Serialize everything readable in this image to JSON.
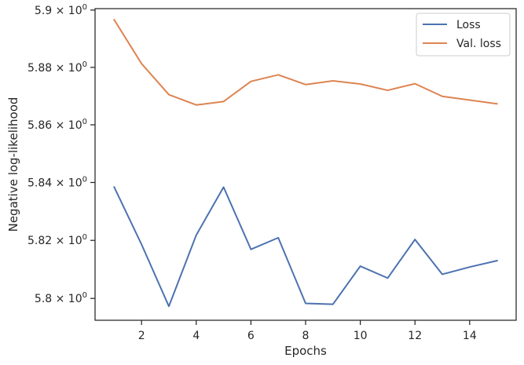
{
  "chart_data": {
    "type": "line",
    "xlabel": "Epochs",
    "ylabel": "Negative log-likelihood",
    "yscale": "log",
    "grid": false,
    "legend_position": "top-right",
    "xlim": [
      0.3,
      15.7
    ],
    "ylim": [
      5.7925,
      5.9005
    ],
    "x_ticks": [
      2,
      4,
      6,
      8,
      10,
      12,
      14
    ],
    "y_ticks": [
      {
        "value": 5.8,
        "mantissa": "5.8"
      },
      {
        "value": 5.82,
        "mantissa": "5.82"
      },
      {
        "value": 5.84,
        "mantissa": "5.84"
      },
      {
        "value": 5.86,
        "mantissa": "5.86"
      },
      {
        "value": 5.88,
        "mantissa": "5.88"
      },
      {
        "value": 5.9,
        "mantissa": "5.9"
      }
    ],
    "x": [
      1,
      2,
      3,
      4,
      5,
      6,
      7,
      8,
      9,
      10,
      11,
      12,
      13,
      14,
      15
    ],
    "series": [
      {
        "name": "Loss",
        "color": "#4c72b0",
        "values": [
          5.8384,
          5.8186,
          5.7973,
          5.8218,
          5.8384,
          5.8169,
          5.8209,
          5.7983,
          5.798,
          5.8111,
          5.807,
          5.8203,
          5.8083,
          5.8108,
          5.813
        ]
      },
      {
        "name": "Val. loss",
        "color": "#dd8452",
        "values": [
          5.8966,
          5.8813,
          5.8705,
          5.8669,
          5.8681,
          5.8751,
          5.8774,
          5.874,
          5.8753,
          5.8742,
          5.872,
          5.8743,
          5.8699,
          5.8686,
          5.8673
        ]
      }
    ]
  }
}
